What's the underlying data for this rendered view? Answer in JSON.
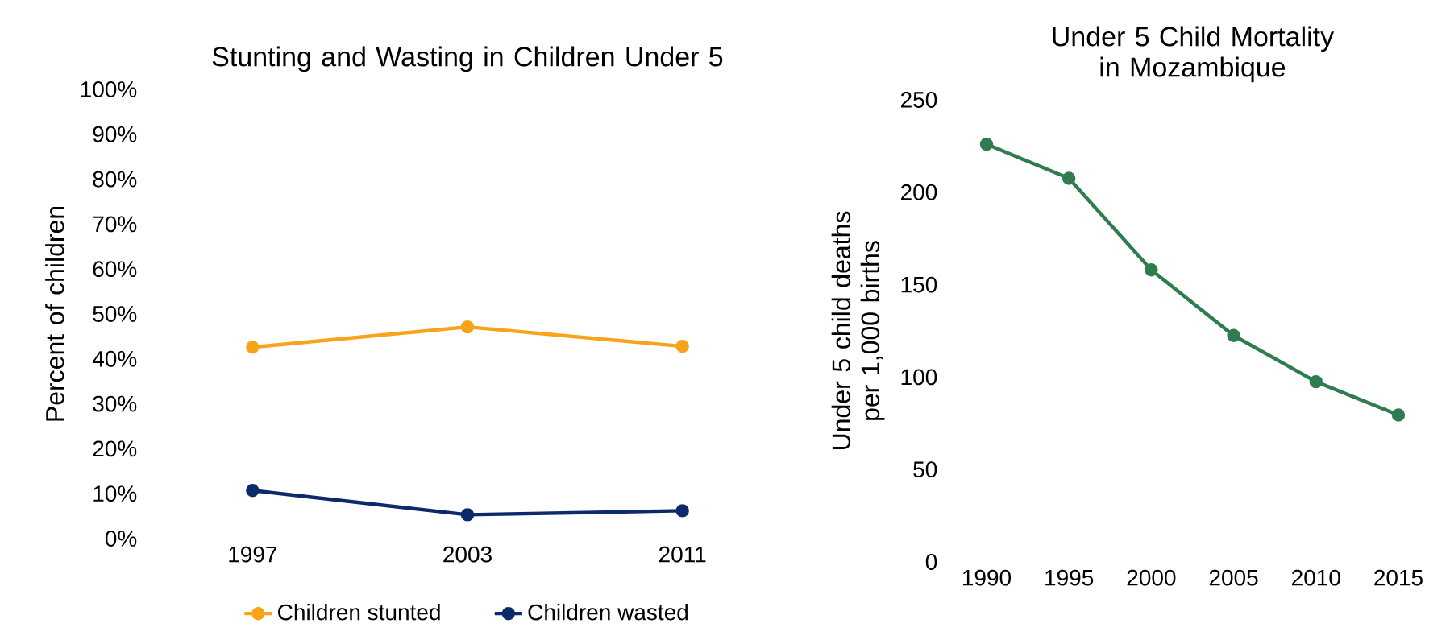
{
  "chart_data": [
    {
      "type": "line",
      "title": "Stunting and Wasting in Children Under 5",
      "ylabel": "Percent of children",
      "categories": [
        "1997",
        "2003",
        "2011"
      ],
      "marker": "circle",
      "legend": "bottom",
      "ylim": [
        0,
        100
      ],
      "yticks": [
        {
          "value": 0,
          "label": "0%"
        },
        {
          "value": 10,
          "label": "10%"
        },
        {
          "value": 20,
          "label": "20%"
        },
        {
          "value": 30,
          "label": "30%"
        },
        {
          "value": 40,
          "label": "40%"
        },
        {
          "value": 50,
          "label": "50%"
        },
        {
          "value": 60,
          "label": "60%"
        },
        {
          "value": 70,
          "label": "70%"
        },
        {
          "value": 80,
          "label": "80%"
        },
        {
          "value": 90,
          "label": "90%"
        },
        {
          "value": 100,
          "label": "100%"
        }
      ],
      "series": [
        {
          "name": "Children stunted",
          "color": "#f9a31b",
          "values": [
            42.6,
            47.1,
            42.8
          ]
        },
        {
          "name": "Children wasted",
          "color": "#0b2a6b",
          "values": [
            10.7,
            5.3,
            6.2
          ]
        }
      ]
    },
    {
      "type": "line",
      "title": "Under 5 Child Mortality in Mozambique",
      "ylabel": "Under 5 child deaths per 1,000 births",
      "x": [
        1990,
        1995,
        2000,
        2005,
        2010,
        2015
      ],
      "marker": "circle",
      "xlim": [
        1990,
        2015
      ],
      "xticks": [
        1990,
        1995,
        2000,
        2005,
        2010,
        2015
      ],
      "ylim": [
        0,
        250
      ],
      "yticks": [
        0,
        50,
        100,
        150,
        200,
        250
      ],
      "series": [
        {
          "color": "#2f7d4f",
          "values": [
            226,
            207.5,
            158,
            122.5,
            97.5,
            79.5
          ]
        }
      ]
    }
  ]
}
